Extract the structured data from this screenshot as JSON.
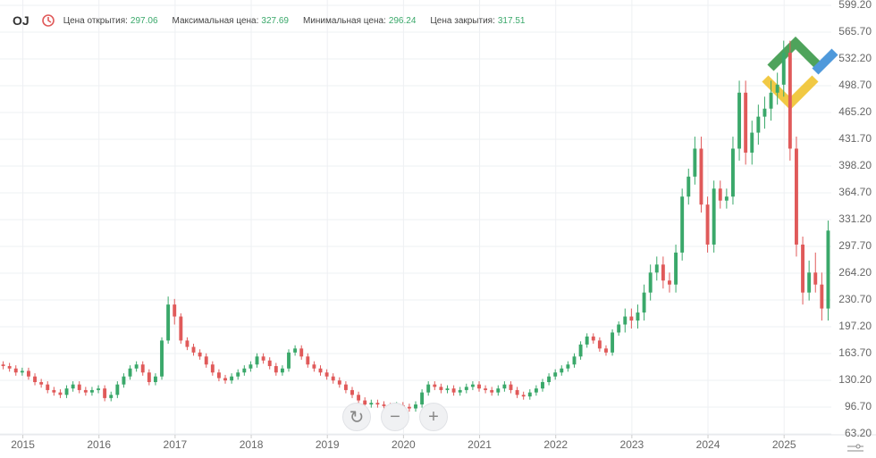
{
  "header": {
    "symbol": "OJ",
    "fields": [
      {
        "label": "Цена открытия:",
        "value": 297.06
      },
      {
        "label": "Максимальная цена:",
        "value": 327.69
      },
      {
        "label": "Минимальная цена:",
        "value": 296.24
      },
      {
        "label": "Цена закрытия:",
        "value": 317.51
      }
    ]
  },
  "chart_data": {
    "type": "candlestick",
    "up_color": "#3aa86a",
    "down_color": "#e05a5a",
    "grid": true,
    "xlim": [
      2014.7,
      2025.62
    ],
    "xticks": [
      2015,
      2016,
      2017,
      2018,
      2019,
      2020,
      2021,
      2022,
      2023,
      2024,
      2025
    ],
    "ylim": [
      63.2,
      599.2
    ],
    "yticks": [
      {
        "value": 63.2,
        "label": "63.20"
      },
      {
        "value": 96.7,
        "label": "96.70"
      },
      {
        "value": 130.2,
        "label": "130.20"
      },
      {
        "value": 163.7,
        "label": "163.70"
      },
      {
        "value": 197.2,
        "label": "197.20"
      },
      {
        "value": 230.7,
        "label": "230.70"
      },
      {
        "value": 264.2,
        "label": "264.20"
      },
      {
        "value": 297.7,
        "label": "297.70"
      },
      {
        "value": 331.2,
        "label": "331.20"
      },
      {
        "value": 364.7,
        "label": "364.70"
      },
      {
        "value": 398.2,
        "label": "398.20"
      },
      {
        "value": 431.7,
        "label": "431.70"
      },
      {
        "value": 465.2,
        "label": "465.20"
      },
      {
        "value": 498.7,
        "label": "498.70"
      },
      {
        "value": 532.2,
        "label": "532.20"
      },
      {
        "value": 565.7,
        "label": "565.70"
      },
      {
        "value": 599.2,
        "label": "599.20"
      }
    ],
    "candles": [
      [
        150,
        154,
        144,
        148
      ],
      [
        148,
        152,
        141,
        145
      ],
      [
        145,
        149,
        136,
        140
      ],
      [
        140,
        146,
        136,
        142
      ],
      [
        142,
        146,
        131,
        135
      ],
      [
        135,
        139,
        124,
        128
      ],
      [
        128,
        132,
        121,
        125
      ],
      [
        125,
        129,
        114,
        118
      ],
      [
        118,
        122,
        111,
        115
      ],
      [
        115,
        119,
        108,
        112
      ],
      [
        112,
        124,
        108,
        120
      ],
      [
        120,
        129,
        116,
        125
      ],
      [
        125,
        129,
        114,
        118
      ],
      [
        118,
        122,
        111,
        115
      ],
      [
        115,
        122,
        111,
        118
      ],
      [
        118,
        124,
        114,
        120
      ],
      [
        120,
        124,
        104,
        108
      ],
      [
        108,
        116,
        104,
        112
      ],
      [
        112,
        129,
        108,
        125
      ],
      [
        125,
        139,
        121,
        135
      ],
      [
        135,
        149,
        131,
        145
      ],
      [
        145,
        154,
        141,
        150
      ],
      [
        150,
        154,
        136,
        140
      ],
      [
        140,
        144,
        124,
        128
      ],
      [
        128,
        139,
        124,
        135
      ],
      [
        135,
        184,
        131,
        180
      ],
      [
        180,
        235,
        176,
        225
      ],
      [
        225,
        232,
        200,
        210
      ],
      [
        210,
        214,
        176,
        180
      ],
      [
        180,
        184,
        168,
        172
      ],
      [
        172,
        176,
        161,
        165
      ],
      [
        165,
        169,
        156,
        160
      ],
      [
        160,
        164,
        146,
        150
      ],
      [
        150,
        154,
        136,
        140
      ],
      [
        140,
        144,
        129,
        133
      ],
      [
        133,
        137,
        126,
        130
      ],
      [
        130,
        139,
        126,
        135
      ],
      [
        135,
        144,
        131,
        140
      ],
      [
        140,
        149,
        136,
        145
      ],
      [
        145,
        154,
        141,
        150
      ],
      [
        150,
        164,
        146,
        160
      ],
      [
        160,
        164,
        151,
        155
      ],
      [
        155,
        159,
        144,
        148
      ],
      [
        148,
        152,
        136,
        140
      ],
      [
        140,
        149,
        136,
        145
      ],
      [
        145,
        169,
        141,
        165
      ],
      [
        165,
        174,
        161,
        170
      ],
      [
        170,
        174,
        156,
        160
      ],
      [
        160,
        164,
        146,
        150
      ],
      [
        150,
        154,
        141,
        145
      ],
      [
        145,
        149,
        136,
        140
      ],
      [
        140,
        144,
        131,
        135
      ],
      [
        135,
        139,
        126,
        130
      ],
      [
        130,
        134,
        121,
        125
      ],
      [
        125,
        129,
        114,
        118
      ],
      [
        118,
        122,
        108,
        112
      ],
      [
        112,
        116,
        101,
        105
      ],
      [
        105,
        109,
        96,
        100
      ],
      [
        100,
        106,
        96,
        102
      ],
      [
        102,
        106,
        96,
        100
      ],
      [
        100,
        104,
        94,
        98
      ],
      [
        98,
        102,
        92,
        96
      ],
      [
        96,
        103,
        92,
        99
      ],
      [
        99,
        103,
        93,
        97
      ],
      [
        97,
        101,
        91,
        95
      ],
      [
        95,
        104,
        91,
        100
      ],
      [
        100,
        119,
        96,
        115
      ],
      [
        115,
        129,
        111,
        125
      ],
      [
        125,
        129,
        118,
        122
      ],
      [
        122,
        126,
        114,
        118
      ],
      [
        118,
        124,
        114,
        120
      ],
      [
        120,
        124,
        111,
        115
      ],
      [
        115,
        122,
        111,
        118
      ],
      [
        118,
        126,
        114,
        122
      ],
      [
        122,
        129,
        118,
        125
      ],
      [
        125,
        129,
        116,
        120
      ],
      [
        120,
        124,
        114,
        118
      ],
      [
        118,
        122,
        111,
        115
      ],
      [
        115,
        124,
        111,
        120
      ],
      [
        120,
        129,
        116,
        125
      ],
      [
        125,
        129,
        114,
        118
      ],
      [
        118,
        122,
        108,
        112
      ],
      [
        112,
        116,
        106,
        110
      ],
      [
        110,
        119,
        106,
        115
      ],
      [
        115,
        124,
        111,
        120
      ],
      [
        120,
        132,
        116,
        128
      ],
      [
        128,
        139,
        124,
        135
      ],
      [
        135,
        144,
        131,
        140
      ],
      [
        140,
        149,
        136,
        145
      ],
      [
        145,
        154,
        141,
        150
      ],
      [
        150,
        164,
        146,
        160
      ],
      [
        160,
        179,
        156,
        175
      ],
      [
        175,
        189,
        171,
        185
      ],
      [
        185,
        189,
        176,
        180
      ],
      [
        180,
        184,
        166,
        170
      ],
      [
        170,
        174,
        161,
        165
      ],
      [
        165,
        194,
        161,
        190
      ],
      [
        190,
        204,
        186,
        200
      ],
      [
        200,
        220,
        190,
        210
      ],
      [
        210,
        220,
        195,
        205
      ],
      [
        205,
        225,
        195,
        215
      ],
      [
        215,
        250,
        205,
        240
      ],
      [
        240,
        275,
        230,
        265
      ],
      [
        265,
        285,
        255,
        275
      ],
      [
        275,
        285,
        245,
        255
      ],
      [
        255,
        265,
        240,
        250
      ],
      [
        250,
        300,
        240,
        290
      ],
      [
        290,
        370,
        280,
        360
      ],
      [
        360,
        395,
        350,
        385
      ],
      [
        385,
        435,
        375,
        420
      ],
      [
        420,
        435,
        340,
        350
      ],
      [
        350,
        360,
        290,
        300
      ],
      [
        300,
        380,
        290,
        370
      ],
      [
        370,
        380,
        345,
        355
      ],
      [
        355,
        370,
        345,
        360
      ],
      [
        360,
        435,
        350,
        420
      ],
      [
        420,
        505,
        405,
        490
      ],
      [
        490,
        505,
        400,
        415
      ],
      [
        415,
        455,
        400,
        440
      ],
      [
        440,
        475,
        425,
        460
      ],
      [
        460,
        485,
        445,
        470
      ],
      [
        470,
        505,
        455,
        490
      ],
      [
        490,
        515,
        475,
        500
      ],
      [
        500,
        555,
        485,
        540
      ],
      [
        540,
        555,
        405,
        420
      ],
      [
        420,
        435,
        285,
        300
      ],
      [
        300,
        310,
        225,
        240
      ],
      [
        240,
        280,
        230,
        265
      ],
      [
        265,
        290,
        240,
        250
      ],
      [
        250,
        265,
        205,
        220
      ],
      [
        220,
        330,
        205,
        317.51
      ]
    ]
  }
}
